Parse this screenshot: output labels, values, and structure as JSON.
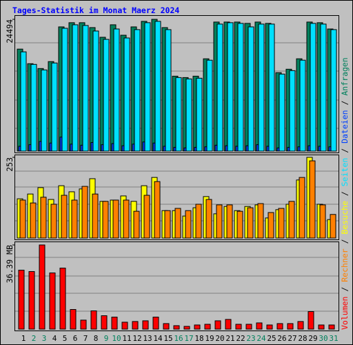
{
  "chart_data": [
    {
      "type": "bar",
      "title": "Tages-Statistik im Monat Maerz 2024",
      "ylim": [
        0,
        24494
      ],
      "yticks": [
        24494
      ],
      "series": [
        {
          "name": "Anfragen",
          "color": "#00805c",
          "values": [
            18960,
            16250,
            15350,
            16640,
            23090,
            23870,
            23870,
            22960,
            21160,
            23480,
            21540,
            23090,
            24120,
            24494,
            22960,
            13930,
            13670,
            13930,
            17160,
            23990,
            23990,
            23990,
            23740,
            23990,
            23740,
            14580,
            15220,
            17160,
            23990,
            23870,
            22700
          ]
        },
        {
          "name": "Dateien",
          "color": "#0040ff",
          "values": [
            900,
            1200,
            1800,
            1500,
            2600,
            1300,
            1100,
            1600,
            1200,
            1400,
            1000,
            1300,
            1700,
            1500,
            900,
            700,
            600,
            700,
            800,
            1100,
            1000,
            900,
            1000,
            1200,
            900,
            600,
            700,
            800,
            1000,
            900,
            800
          ]
        },
        {
          "name": "Seiten",
          "color": "#00e0ff",
          "values": [
            18450,
            16120,
            15090,
            16380,
            22830,
            23480,
            23350,
            22320,
            20770,
            22700,
            21030,
            22580,
            23870,
            24120,
            22580,
            13670,
            13420,
            13550,
            16900,
            23610,
            23870,
            23740,
            23090,
            23610,
            23610,
            14320,
            14960,
            16900,
            23740,
            23610,
            22580
          ]
        }
      ]
    },
    {
      "type": "bar",
      "ylim": [
        0,
        253
      ],
      "yticks": [
        253
      ],
      "series": [
        {
          "name": "Besuche",
          "color": "#ffff00",
          "values": [
            123,
            138,
            158,
            121,
            164,
            145,
            154,
            186,
            115,
            119,
            132,
            115,
            164,
            190,
            86,
            86,
            69,
            95,
            130,
            76,
            99,
            86,
            99,
            104,
            63,
            89,
            106,
            182,
            253,
            106,
            58
          ]
        },
        {
          "name": "Rechner",
          "color": "#ff8000",
          "values": [
            119,
            110,
            128,
            106,
            134,
            119,
            162,
            138,
            115,
            119,
            119,
            84,
            134,
            177,
            86,
            93,
            86,
            106,
            121,
            104,
            104,
            84,
            95,
            108,
            80,
            93,
            115,
            190,
            242,
            104,
            74
          ]
        }
      ]
    },
    {
      "type": "bar",
      "ylim": [
        0,
        36.39
      ],
      "yticks": [
        {
          "value": 36.39,
          "label": "36.39 MB"
        }
      ],
      "categories": [
        "1",
        "2",
        "3",
        "4",
        "5",
        "6",
        "7",
        "8",
        "9",
        "10",
        "11",
        "12",
        "13",
        "14",
        "15",
        "16",
        "17",
        "18",
        "19",
        "20",
        "21",
        "22",
        "23",
        "24",
        "25",
        "26",
        "27",
        "28",
        "29",
        "30",
        "31"
      ],
      "tick_label_colors": [
        "#000000",
        "#00805c",
        "#00805c",
        "#000000",
        "#000000",
        "#000000",
        "#000000",
        "#000000",
        "#00805c",
        "#00805c",
        "#000000",
        "#000000",
        "#000000",
        "#000000",
        "#000000",
        "#00805c",
        "#00805c",
        "#000000",
        "#000000",
        "#000000",
        "#000000",
        "#000000",
        "#00805c",
        "#00805c",
        "#000000",
        "#000000",
        "#000000",
        "#000000",
        "#000000",
        "#00805c",
        "#00805c"
      ],
      "series": [
        {
          "name": "Volumen",
          "color": "#ff0000",
          "values": [
            25.5,
            24.9,
            36.39,
            24.3,
            26.4,
            8.5,
            3.9,
            7.9,
            5.8,
            5.2,
            3.0,
            3.3,
            3.6,
            5.2,
            2.4,
            1.5,
            1.2,
            1.8,
            2.1,
            3.6,
            4.2,
            2.1,
            2.1,
            2.7,
            1.8,
            2.4,
            2.4,
            3.3,
            7.6,
            1.8,
            1.8
          ]
        }
      ]
    }
  ]
}
